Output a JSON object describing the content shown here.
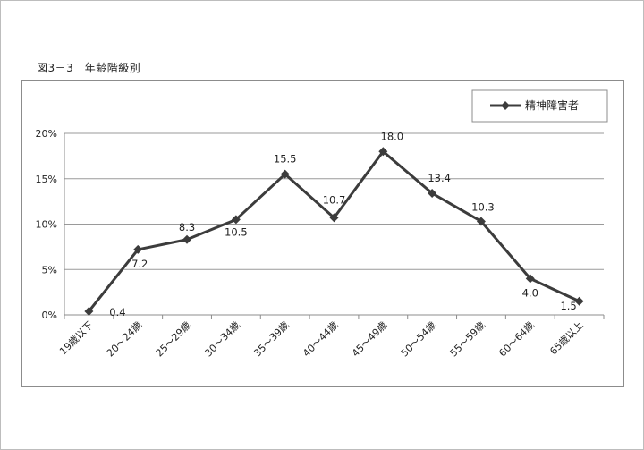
{
  "caption": "図3－3　年齢階級別",
  "chart_data": {
    "type": "line",
    "categories": [
      "19歳以下",
      "20～24歳",
      "25～29歳",
      "30～34歳",
      "35～39歳",
      "40～44歳",
      "45～49歳",
      "50～54歳",
      "55～59歳",
      "60～64歳",
      "65歳以上"
    ],
    "series": [
      {
        "name": "精神障害者",
        "values": [
          0.4,
          7.2,
          8.3,
          10.5,
          15.5,
          10.7,
          18.0,
          13.4,
          10.3,
          4.0,
          1.5
        ],
        "labels": [
          "0.4",
          "7.2",
          "8.3",
          "10.5",
          "15.5",
          "10.7",
          "18.0",
          "13.4",
          "10.3",
          "4.0",
          "1.5"
        ],
        "color": "#3c3c3c",
        "marker": "diamond"
      }
    ],
    "yticks": [
      "0%",
      "5%",
      "10%",
      "15%",
      "20%"
    ],
    "ytick_values": [
      0,
      5,
      10,
      15,
      20
    ],
    "ylim": [
      0,
      20
    ],
    "grid": true,
    "legend": "top-right",
    "xlabel": "",
    "ylabel": ""
  }
}
